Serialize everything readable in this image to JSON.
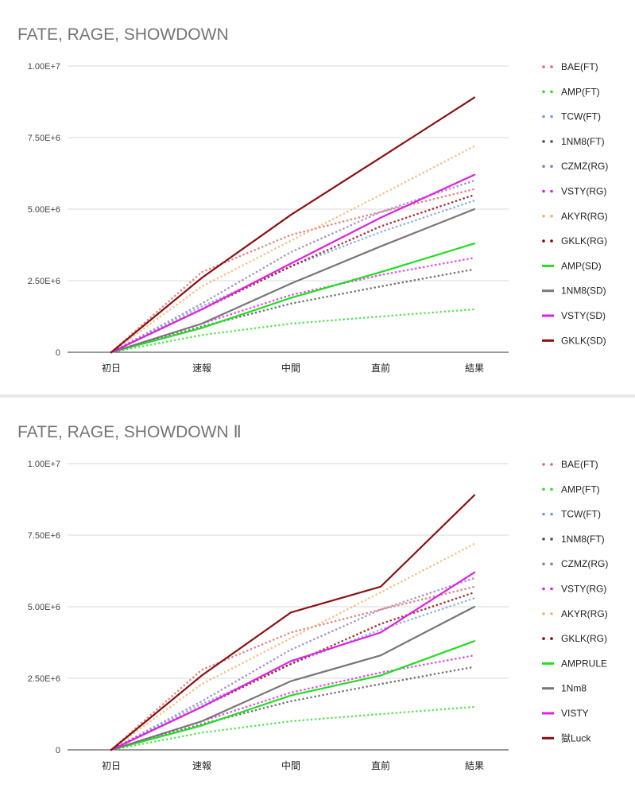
{
  "chart_data": [
    {
      "type": "line",
      "title": "FATE, RAGE, SHOWDOWN",
      "xlabel": "",
      "ylabel": "",
      "ylim": [
        0,
        10000000
      ],
      "yticks": [
        "0",
        "2.50E+6",
        "5.00E+6",
        "7.50E+6",
        "1.00E+7"
      ],
      "yticks_values": [
        0,
        2500000,
        5000000,
        7500000,
        10000000
      ],
      "grid": true,
      "legend": "right",
      "categories": [
        "初日",
        "速報",
        "中間",
        "直前",
        "結果"
      ],
      "series": [
        {
          "name": "BAE(FT)",
          "style": "dotted",
          "color": "#e06666",
          "values": [
            0,
            2800000,
            4100000,
            4900000,
            5700000
          ]
        },
        {
          "name": "AMP(FT)",
          "style": "dotted",
          "color": "#33dd33",
          "values": [
            0,
            600000,
            1000000,
            1250000,
            1500000
          ]
        },
        {
          "name": "TCW(FT)",
          "style": "dotted",
          "color": "#6d9eeb",
          "values": [
            0,
            1600000,
            3000000,
            4200000,
            5300000
          ]
        },
        {
          "name": "1NM8(FT)",
          "style": "dotted",
          "color": "#555555",
          "values": [
            0,
            900000,
            1700000,
            2300000,
            2900000
          ]
        },
        {
          "name": "CZMZ(RG)",
          "style": "dotted",
          "color": "#8e7cc3",
          "values": [
            0,
            1700000,
            3500000,
            4900000,
            6000000
          ]
        },
        {
          "name": "VSTY(RG)",
          "style": "dotted",
          "color": "#e020e0",
          "values": [
            0,
            1000000,
            2000000,
            2700000,
            3300000
          ]
        },
        {
          "name": "AKYR(RG)",
          "style": "dotted",
          "color": "#f6b26b",
          "values": [
            0,
            2300000,
            3900000,
            5500000,
            7200000
          ]
        },
        {
          "name": "GKLK(RG)",
          "style": "dotted",
          "color": "#990000",
          "values": [
            0,
            1500000,
            3000000,
            4400000,
            5500000
          ]
        },
        {
          "name": "AMP(SD)",
          "style": "solid",
          "color": "#22dd22",
          "values": [
            0,
            850000,
            1900000,
            2800000,
            3800000
          ]
        },
        {
          "name": "1NM8(SD)",
          "style": "solid",
          "color": "#777777",
          "values": [
            0,
            1000000,
            2400000,
            3700000,
            5000000
          ]
        },
        {
          "name": "VSTY(SD)",
          "style": "solid",
          "color": "#e020e0",
          "values": [
            0,
            1500000,
            3100000,
            4700000,
            6200000
          ]
        },
        {
          "name": "GKLK(SD)",
          "style": "solid",
          "color": "#8b1010",
          "values": [
            0,
            2600000,
            4800000,
            6800000,
            8900000
          ]
        }
      ]
    },
    {
      "type": "line",
      "title": "FATE, RAGE, SHOWDOWN Ⅱ",
      "xlabel": "",
      "ylabel": "",
      "ylim": [
        0,
        10000000
      ],
      "yticks": [
        "0",
        "2.50E+6",
        "5.00E+6",
        "7.50E+6",
        "1.00E+7"
      ],
      "yticks_values": [
        0,
        2500000,
        5000000,
        7500000,
        10000000
      ],
      "grid": true,
      "legend": "right",
      "categories": [
        "初日",
        "速報",
        "中間",
        "直前",
        "結果"
      ],
      "series": [
        {
          "name": "BAE(FT)",
          "style": "dotted",
          "color": "#e06666",
          "values": [
            0,
            2800000,
            4100000,
            4900000,
            5700000
          ]
        },
        {
          "name": "AMP(FT)",
          "style": "dotted",
          "color": "#33dd33",
          "values": [
            0,
            600000,
            1000000,
            1250000,
            1500000
          ]
        },
        {
          "name": "TCW(FT)",
          "style": "dotted",
          "color": "#6d9eeb",
          "values": [
            0,
            1600000,
            3000000,
            4200000,
            5300000
          ]
        },
        {
          "name": "1NM8(FT)",
          "style": "dotted",
          "color": "#555555",
          "values": [
            0,
            900000,
            1700000,
            2300000,
            2900000
          ]
        },
        {
          "name": "CZMZ(RG)",
          "style": "dotted",
          "color": "#8e7cc3",
          "values": [
            0,
            1700000,
            3500000,
            4900000,
            6000000
          ]
        },
        {
          "name": "VSTY(RG)",
          "style": "dotted",
          "color": "#e020e0",
          "values": [
            0,
            1000000,
            2000000,
            2700000,
            3300000
          ]
        },
        {
          "name": "AKYR(RG)",
          "style": "dotted",
          "color": "#f6b26b",
          "values": [
            0,
            2300000,
            3900000,
            5500000,
            7200000
          ]
        },
        {
          "name": "GKLK(RG)",
          "style": "dotted",
          "color": "#990000",
          "values": [
            0,
            1500000,
            3000000,
            4400000,
            5500000
          ]
        },
        {
          "name": "AMPRULE",
          "style": "solid",
          "color": "#22dd22",
          "values": [
            0,
            850000,
            1900000,
            2600000,
            3800000
          ]
        },
        {
          "name": "1Nm8",
          "style": "solid",
          "color": "#777777",
          "values": [
            0,
            1000000,
            2400000,
            3300000,
            5000000
          ]
        },
        {
          "name": "VISTY",
          "style": "solid",
          "color": "#e020e0",
          "values": [
            0,
            1500000,
            3100000,
            4100000,
            6200000
          ]
        },
        {
          "name": "獄Luck",
          "style": "solid",
          "color": "#8b1010",
          "values": [
            0,
            2600000,
            4800000,
            5700000,
            8900000
          ]
        }
      ]
    }
  ]
}
